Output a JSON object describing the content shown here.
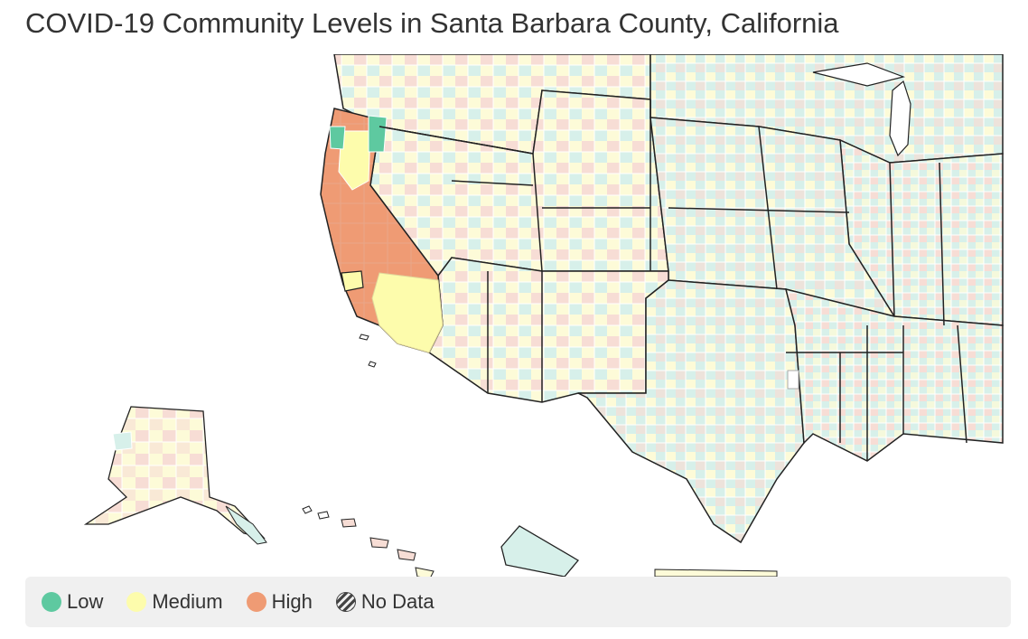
{
  "title": "COVID-19 Community Levels in Santa Barbara County, California",
  "colors": {
    "low": "#5ec9a0",
    "medium": "#fdfcac",
    "high": "#ef9b74",
    "low_light": "#d7f0ea",
    "medium_light": "#fdfbd8",
    "high_light": "#f7ddd5",
    "state_border": "#222222",
    "county_border": "#ffffff"
  },
  "legend": {
    "items": [
      {
        "label": "Low",
        "color": "#5ec9a0"
      },
      {
        "label": "Medium",
        "color": "#fdfcac"
      },
      {
        "label": "High",
        "color": "#ef9b74"
      },
      {
        "label": "No Data",
        "icon": "hatch-icon"
      }
    ]
  }
}
